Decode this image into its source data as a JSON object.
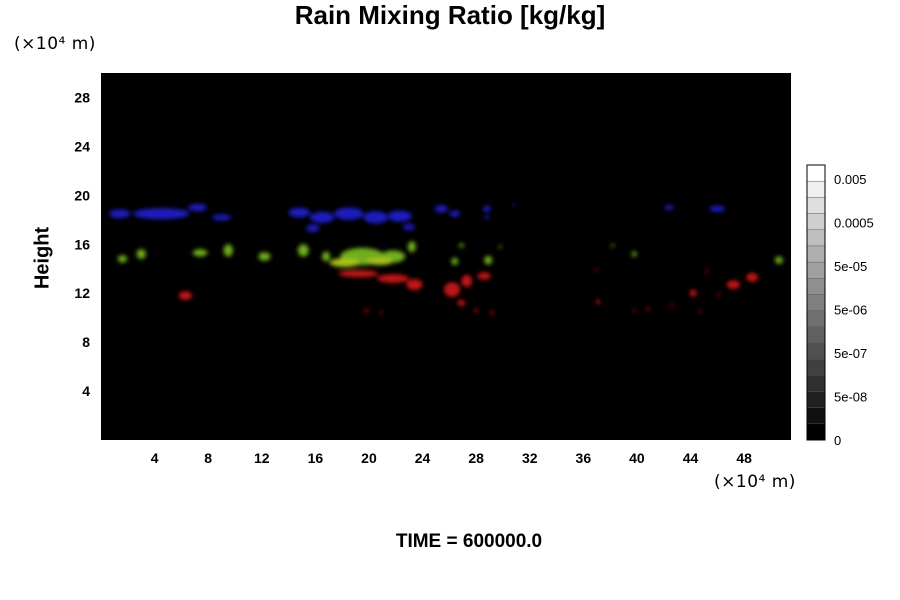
{
  "chart_data": {
    "type": "heatmap",
    "title": "Rain Mixing Ratio [kg/kg]",
    "ylabel": "Height",
    "x_unit": "(×10⁴ m)",
    "y_unit": "(×10⁴ m)",
    "xlim": [
      0,
      51.5
    ],
    "ylim": [
      0,
      30
    ],
    "x_ticks": [
      4,
      8,
      12,
      16,
      20,
      24,
      28,
      32,
      36,
      40,
      44,
      48
    ],
    "y_ticks": [
      4,
      8,
      12,
      16,
      20,
      24,
      28
    ],
    "background": "#000000",
    "colorbar": {
      "labels": [
        "0.005",
        "0.0005",
        "5e-05",
        "5e-06",
        "5e-07",
        "5e-08",
        "0"
      ],
      "levels": 17
    },
    "layers": [
      {
        "color": "#1f1fbf",
        "blobs": [
          {
            "x": 1.4,
            "y": 18.5,
            "w": 1.6,
            "h": 0.7
          },
          {
            "x": 4.5,
            "y": 18.5,
            "w": 4.2,
            "h": 0.9
          },
          {
            "x": 7.2,
            "y": 19.0,
            "w": 1.4,
            "h": 0.6
          },
          {
            "x": 9.0,
            "y": 18.2,
            "w": 1.4,
            "h": 0.5
          },
          {
            "x": 14.8,
            "y": 18.6,
            "w": 1.6,
            "h": 0.8
          },
          {
            "x": 16.5,
            "y": 18.2,
            "w": 1.8,
            "h": 0.9
          },
          {
            "x": 18.5,
            "y": 18.5,
            "w": 2.2,
            "h": 1.0
          },
          {
            "x": 20.5,
            "y": 18.2,
            "w": 1.8,
            "h": 1.0
          },
          {
            "x": 22.3,
            "y": 18.3,
            "w": 1.8,
            "h": 0.9
          },
          {
            "x": 15.8,
            "y": 17.3,
            "w": 1.0,
            "h": 0.6
          },
          {
            "x": 23.0,
            "y": 17.4,
            "w": 0.9,
            "h": 0.5
          },
          {
            "x": 25.4,
            "y": 18.9,
            "w": 1.0,
            "h": 0.6
          },
          {
            "x": 26.4,
            "y": 18.5,
            "w": 0.8,
            "h": 0.5
          },
          {
            "x": 28.8,
            "y": 18.9,
            "w": 0.6,
            "h": 0.5
          },
          {
            "x": 28.8,
            "y": 18.2,
            "w": 0.4,
            "h": 0.3
          },
          {
            "x": 30.8,
            "y": 19.2,
            "w": 0.2,
            "h": 0.2
          },
          {
            "x": 42.4,
            "y": 19.0,
            "w": 0.7,
            "h": 0.4
          },
          {
            "x": 46.0,
            "y": 18.9,
            "w": 1.2,
            "h": 0.5
          }
        ]
      },
      {
        "color": "#6fae1a",
        "blobs": [
          {
            "x": 1.6,
            "y": 14.8,
            "w": 0.7,
            "h": 0.6
          },
          {
            "x": 3.0,
            "y": 15.2,
            "w": 0.7,
            "h": 0.8
          },
          {
            "x": 7.4,
            "y": 15.3,
            "w": 1.1,
            "h": 0.6
          },
          {
            "x": 9.5,
            "y": 15.5,
            "w": 0.7,
            "h": 1.0
          },
          {
            "x": 12.2,
            "y": 15.0,
            "w": 0.9,
            "h": 0.7
          },
          {
            "x": 15.1,
            "y": 15.5,
            "w": 0.8,
            "h": 1.0
          },
          {
            "x": 16.8,
            "y": 15.0,
            "w": 0.6,
            "h": 0.8
          },
          {
            "x": 19.5,
            "y": 15.0,
            "w": 3.3,
            "h": 1.4
          },
          {
            "x": 21.8,
            "y": 15.0,
            "w": 1.8,
            "h": 1.0
          },
          {
            "x": 23.2,
            "y": 15.8,
            "w": 0.6,
            "h": 0.9
          },
          {
            "x": 26.4,
            "y": 14.6,
            "w": 0.5,
            "h": 0.6
          },
          {
            "x": 28.9,
            "y": 14.7,
            "w": 0.6,
            "h": 0.7
          },
          {
            "x": 26.9,
            "y": 15.9,
            "w": 0.4,
            "h": 0.3
          },
          {
            "x": 29.8,
            "y": 15.8,
            "w": 0.2,
            "h": 0.2
          },
          {
            "x": 38.2,
            "y": 15.9,
            "w": 0.2,
            "h": 0.2
          },
          {
            "x": 39.8,
            "y": 15.2,
            "w": 0.4,
            "h": 0.4
          },
          {
            "x": 50.6,
            "y": 14.7,
            "w": 0.6,
            "h": 0.6
          }
        ]
      },
      {
        "color": "#a8c21d",
        "blobs": [
          {
            "x": 18.2,
            "y": 14.5,
            "w": 2.3,
            "h": 0.7
          },
          {
            "x": 20.8,
            "y": 14.6,
            "w": 2.0,
            "h": 0.6
          }
        ]
      },
      {
        "color": "#c01212",
        "blobs": [
          {
            "x": 6.3,
            "y": 11.8,
            "w": 1.0,
            "h": 0.7
          },
          {
            "x": 19.2,
            "y": 13.6,
            "w": 3.0,
            "h": 0.6
          },
          {
            "x": 21.8,
            "y": 13.2,
            "w": 2.4,
            "h": 0.7
          },
          {
            "x": 23.4,
            "y": 12.7,
            "w": 1.2,
            "h": 0.9
          },
          {
            "x": 26.2,
            "y": 12.3,
            "w": 1.2,
            "h": 1.2
          },
          {
            "x": 27.3,
            "y": 13.0,
            "w": 0.8,
            "h": 1.0
          },
          {
            "x": 28.6,
            "y": 13.4,
            "w": 1.0,
            "h": 0.6
          },
          {
            "x": 26.9,
            "y": 11.2,
            "w": 0.6,
            "h": 0.5
          },
          {
            "x": 19.8,
            "y": 10.6,
            "w": 0.3,
            "h": 0.3
          },
          {
            "x": 20.9,
            "y": 10.4,
            "w": 0.2,
            "h": 0.2
          },
          {
            "x": 28.0,
            "y": 10.6,
            "w": 0.3,
            "h": 0.3
          },
          {
            "x": 29.2,
            "y": 10.4,
            "w": 0.3,
            "h": 0.3
          },
          {
            "x": 37.1,
            "y": 11.3,
            "w": 0.3,
            "h": 0.4
          },
          {
            "x": 37.0,
            "y": 13.9,
            "w": 0.2,
            "h": 0.2
          },
          {
            "x": 39.8,
            "y": 10.6,
            "w": 0.2,
            "h": 0.2
          },
          {
            "x": 40.8,
            "y": 10.7,
            "w": 0.3,
            "h": 0.2
          },
          {
            "x": 42.6,
            "y": 11.0,
            "w": 0.2,
            "h": 0.2
          },
          {
            "x": 44.2,
            "y": 12.0,
            "w": 0.5,
            "h": 0.6
          },
          {
            "x": 44.7,
            "y": 10.5,
            "w": 0.2,
            "h": 0.2
          },
          {
            "x": 46.1,
            "y": 11.9,
            "w": 0.2,
            "h": 0.2
          },
          {
            "x": 47.2,
            "y": 12.7,
            "w": 1.0,
            "h": 0.7
          },
          {
            "x": 48.6,
            "y": 13.3,
            "w": 0.9,
            "h": 0.7
          },
          {
            "x": 45.2,
            "y": 13.8,
            "w": 0.2,
            "h": 0.2
          }
        ]
      }
    ]
  },
  "footer": {
    "time": "TIME = 600000.0"
  }
}
